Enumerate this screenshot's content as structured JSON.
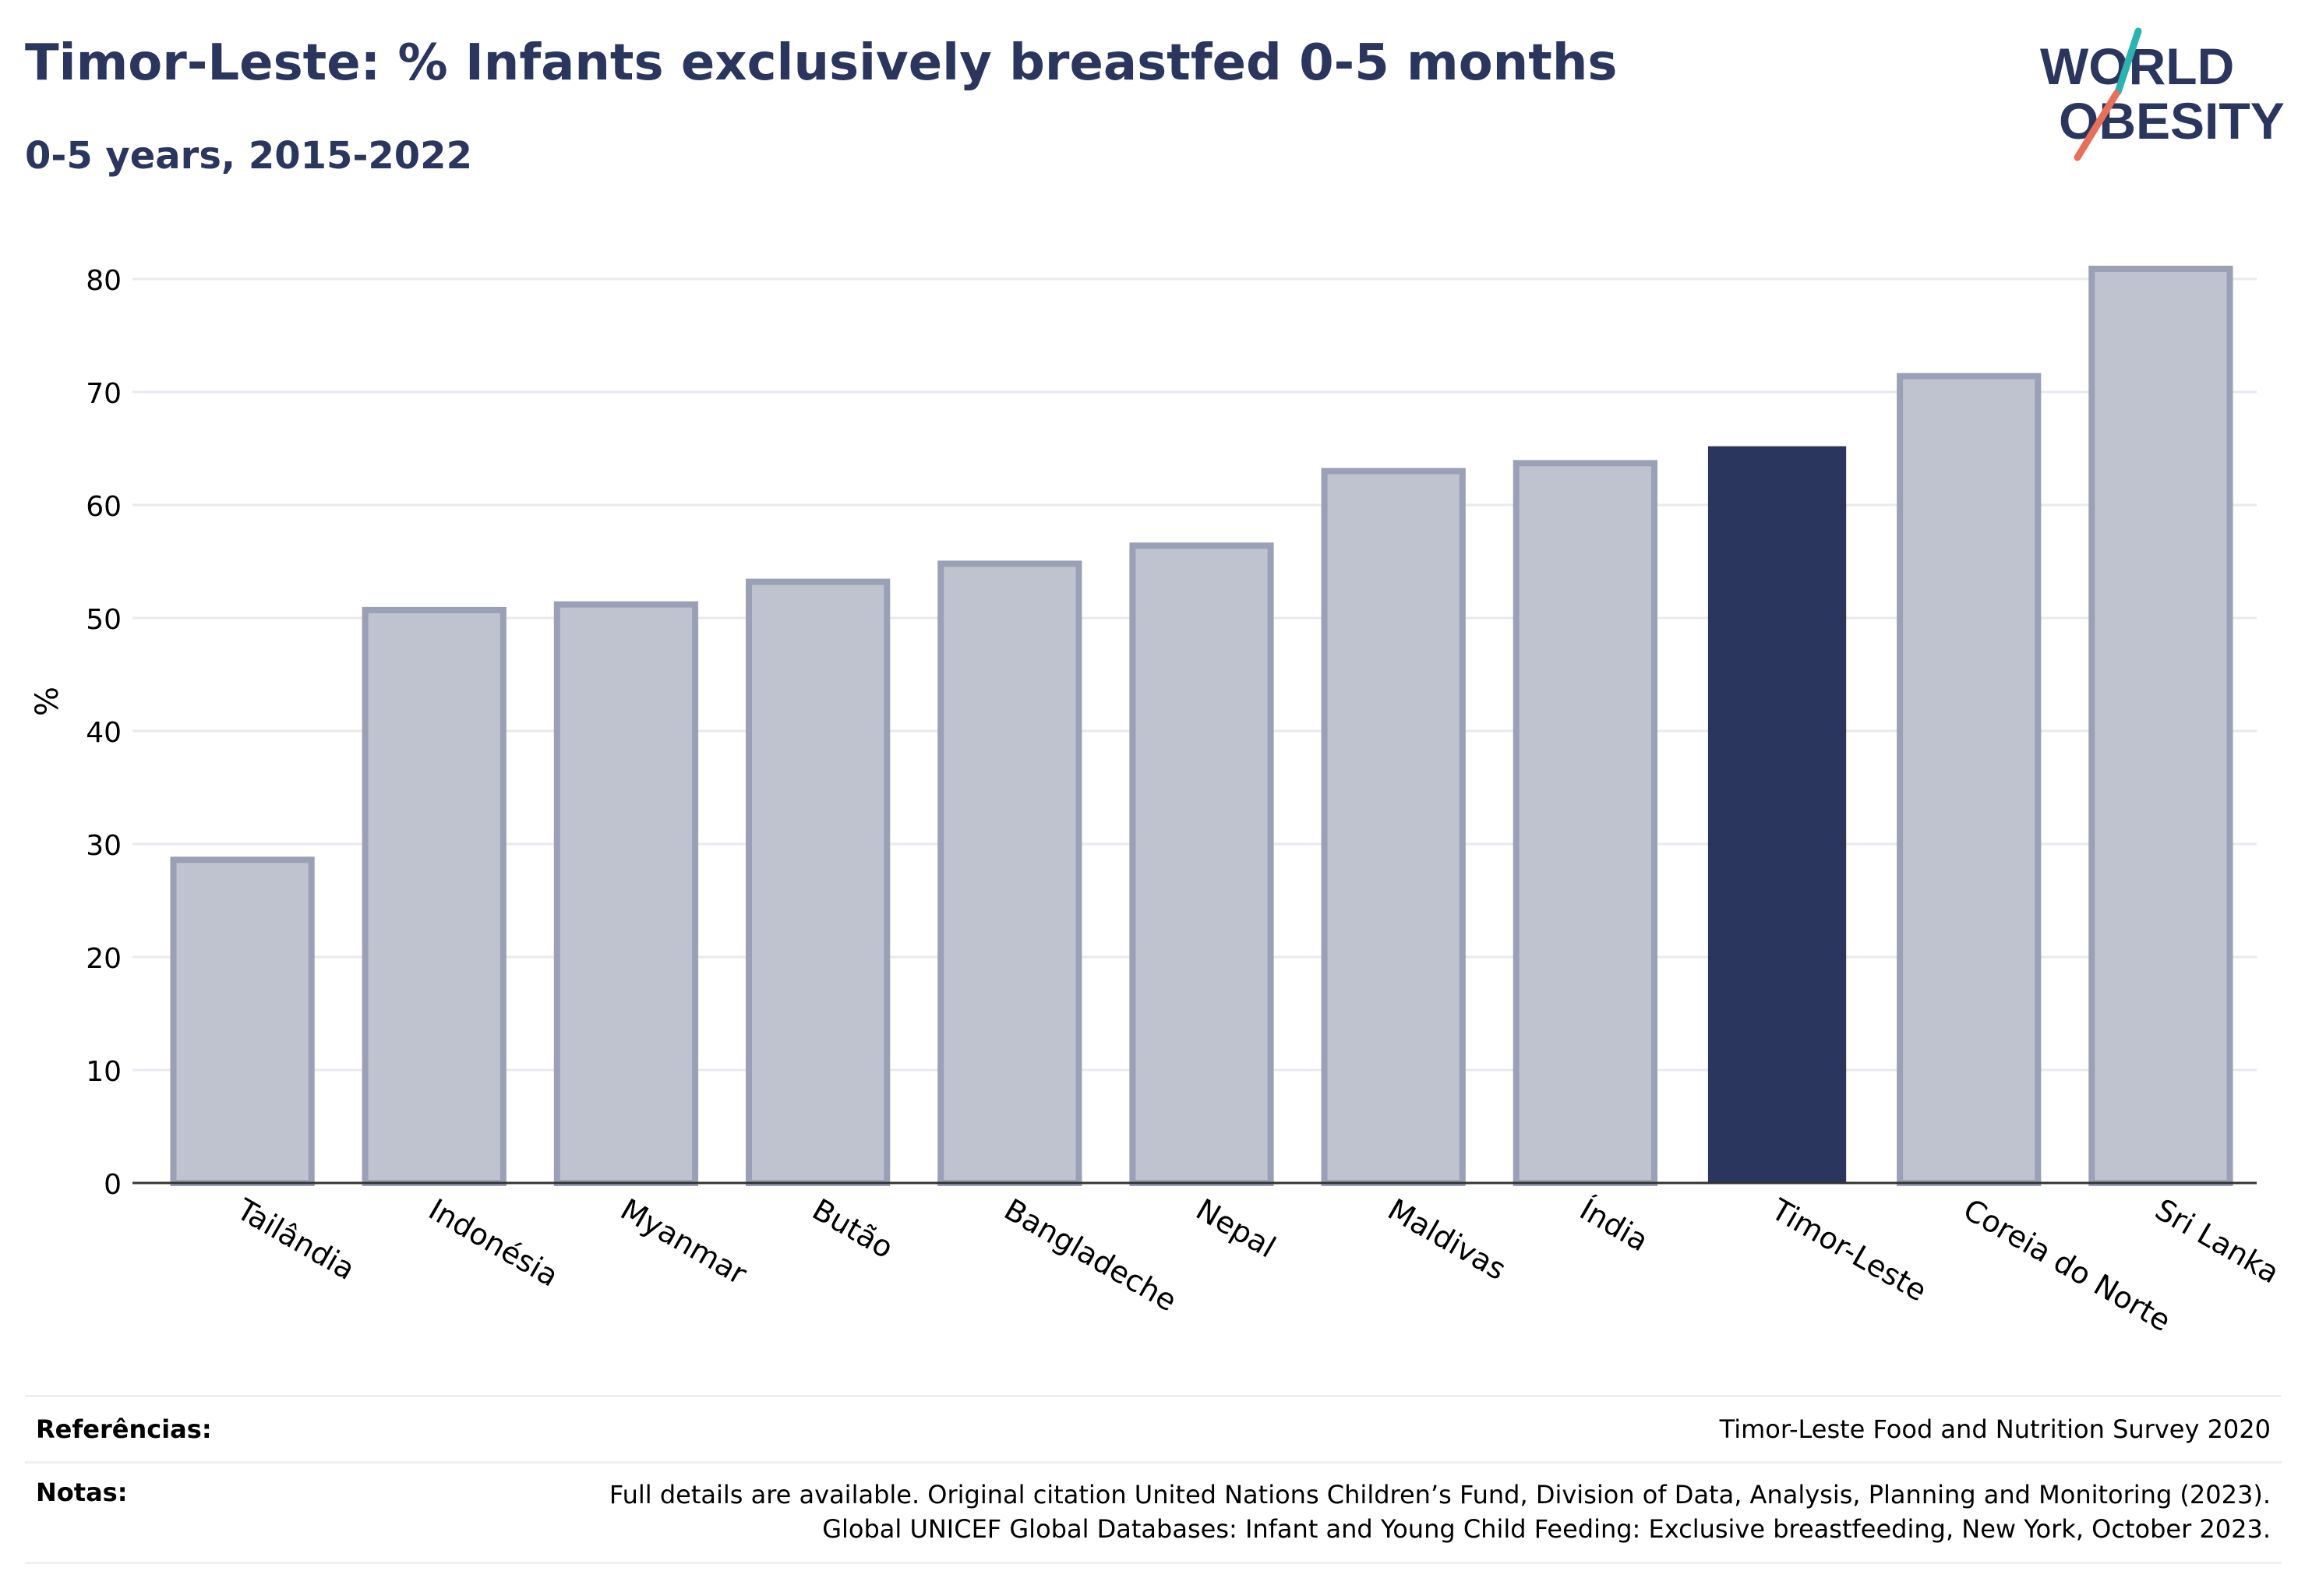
{
  "header": {
    "title": "Timor-Leste: % Infants exclusively breastfed 0-5 months",
    "subtitle": "0-5 years, 2015-2022"
  },
  "logo": {
    "line1": "WORLD",
    "line2": "OBESITY"
  },
  "colors": {
    "highlight": "#2b365f",
    "bar_fill": "#bfc2cf",
    "bar_stroke": "#9aa0b6",
    "grid": "#e8eaf0",
    "logo_teal": "#2ab3b0",
    "logo_coral": "#e8705a"
  },
  "chart_data": {
    "type": "bar",
    "categories": [
      "Tailândia",
      "Indonésia",
      "Myanmar",
      "Butão",
      "Bangladeche",
      "Nepal",
      "Maldivas",
      "Índia",
      "Timor-Leste",
      "Coreia do Norte",
      "Sri Lanka"
    ],
    "values": [
      28.6,
      50.7,
      51.2,
      53.2,
      54.8,
      56.4,
      63.0,
      63.7,
      65.2,
      71.4,
      80.9
    ],
    "highlight": "Timor-Leste",
    "ylabel": "%",
    "xlabel": "",
    "ylim": [
      0,
      84
    ],
    "yticks": [
      0,
      10,
      20,
      30,
      40,
      50,
      60,
      70,
      80
    ],
    "grid": true
  },
  "footer": {
    "references_label": "Referências:",
    "references_value": "Timor-Leste Food and Nutrition Survey 2020",
    "notes_label": "Notas:",
    "notes_line1": "Full details are available. Original citation United Nations Children’s Fund, Division of Data, Analysis, Planning and Monitoring (2023).",
    "notes_line2": "Global UNICEF Global Databases: Infant and Young Child Feeding: Exclusive breastfeeding, New York, October 2023."
  }
}
